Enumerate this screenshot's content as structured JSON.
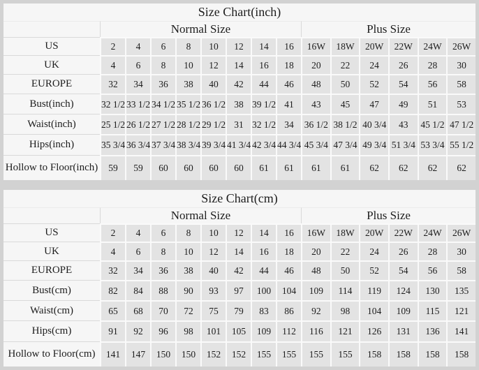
{
  "colors": {
    "page_background": "#d2d2d2",
    "panel_background": "#f6f6f6",
    "data_cell_background": "#e3e3e3",
    "gridline": "#fafafa",
    "separator": "#d9d9d9",
    "text": "#1d1d1d"
  },
  "chart_data": [
    {
      "type": "table",
      "title": "Size Chart(inch)",
      "group_headers": {
        "normal": "Normal Size",
        "plus": "Plus Size"
      },
      "rows": [
        {
          "label": "US",
          "normal": [
            "2",
            "4",
            "6",
            "8",
            "10",
            "12",
            "14",
            "16"
          ],
          "plus": [
            "16W",
            "18W",
            "20W",
            "22W",
            "24W",
            "26W"
          ]
        },
        {
          "label": "UK",
          "normal": [
            "4",
            "6",
            "8",
            "10",
            "12",
            "14",
            "16",
            "18"
          ],
          "plus": [
            "20",
            "22",
            "24",
            "26",
            "28",
            "30"
          ]
        },
        {
          "label": "EUROPE",
          "normal": [
            "32",
            "34",
            "36",
            "38",
            "40",
            "42",
            "44",
            "46"
          ],
          "plus": [
            "48",
            "50",
            "52",
            "54",
            "56",
            "58"
          ]
        },
        {
          "label": "Bust(inch)",
          "normal": [
            "32 1/2",
            "33 1/2",
            "34 1/2",
            "35 1/2",
            "36 1/2",
            "38",
            "39 1/2",
            "41"
          ],
          "plus": [
            "43",
            "45",
            "47",
            "49",
            "51",
            "53"
          ]
        },
        {
          "label": "Waist(inch)",
          "normal": [
            "25 1/2",
            "26 1/2",
            "27 1/2",
            "28 1/2",
            "29 1/2",
            "31",
            "32 1/2",
            "34"
          ],
          "plus": [
            "36 1/2",
            "38 1/2",
            "40 3/4",
            "43",
            "45 1/2",
            "47 1/2"
          ]
        },
        {
          "label": "Hips(inch)",
          "normal": [
            "35 3/4",
            "36 3/4",
            "37 3/4",
            "38 3/4",
            "39 3/4",
            "41 3/4",
            "42 3/4",
            "44 3/4"
          ],
          "plus": [
            "45 3/4",
            "47 3/4",
            "49 3/4",
            "51 3/4",
            "53 3/4",
            "55 1/2"
          ]
        },
        {
          "label": "Hollow to Floor(inch)",
          "normal": [
            "59",
            "59",
            "60",
            "60",
            "60",
            "60",
            "61",
            "61"
          ],
          "plus": [
            "61",
            "61",
            "62",
            "62",
            "62",
            "62"
          ]
        }
      ]
    },
    {
      "type": "table",
      "title": "Size Chart(cm)",
      "group_headers": {
        "normal": "Normal Size",
        "plus": "Plus Size"
      },
      "rows": [
        {
          "label": "US",
          "normal": [
            "2",
            "4",
            "6",
            "8",
            "10",
            "12",
            "14",
            "16"
          ],
          "plus": [
            "16W",
            "18W",
            "20W",
            "22W",
            "24W",
            "26W"
          ]
        },
        {
          "label": "UK",
          "normal": [
            "4",
            "6",
            "8",
            "10",
            "12",
            "14",
            "16",
            "18"
          ],
          "plus": [
            "20",
            "22",
            "24",
            "26",
            "28",
            "30"
          ]
        },
        {
          "label": "EUROPE",
          "normal": [
            "32",
            "34",
            "36",
            "38",
            "40",
            "42",
            "44",
            "46"
          ],
          "plus": [
            "48",
            "50",
            "52",
            "54",
            "56",
            "58"
          ]
        },
        {
          "label": "Bust(cm)",
          "normal": [
            "82",
            "84",
            "88",
            "90",
            "93",
            "97",
            "100",
            "104"
          ],
          "plus": [
            "109",
            "114",
            "119",
            "124",
            "130",
            "135"
          ]
        },
        {
          "label": "Waist(cm)",
          "normal": [
            "65",
            "68",
            "70",
            "72",
            "75",
            "79",
            "83",
            "86"
          ],
          "plus": [
            "92",
            "98",
            "104",
            "109",
            "115",
            "121"
          ]
        },
        {
          "label": "Hips(cm)",
          "normal": [
            "91",
            "92",
            "96",
            "98",
            "101",
            "105",
            "109",
            "112"
          ],
          "plus": [
            "116",
            "121",
            "126",
            "131",
            "136",
            "141"
          ]
        },
        {
          "label": "Hollow to Floor(cm)",
          "normal": [
            "141",
            "147",
            "150",
            "150",
            "152",
            "152",
            "155",
            "155"
          ],
          "plus": [
            "155",
            "155",
            "158",
            "158",
            "158",
            "158"
          ]
        }
      ]
    }
  ]
}
